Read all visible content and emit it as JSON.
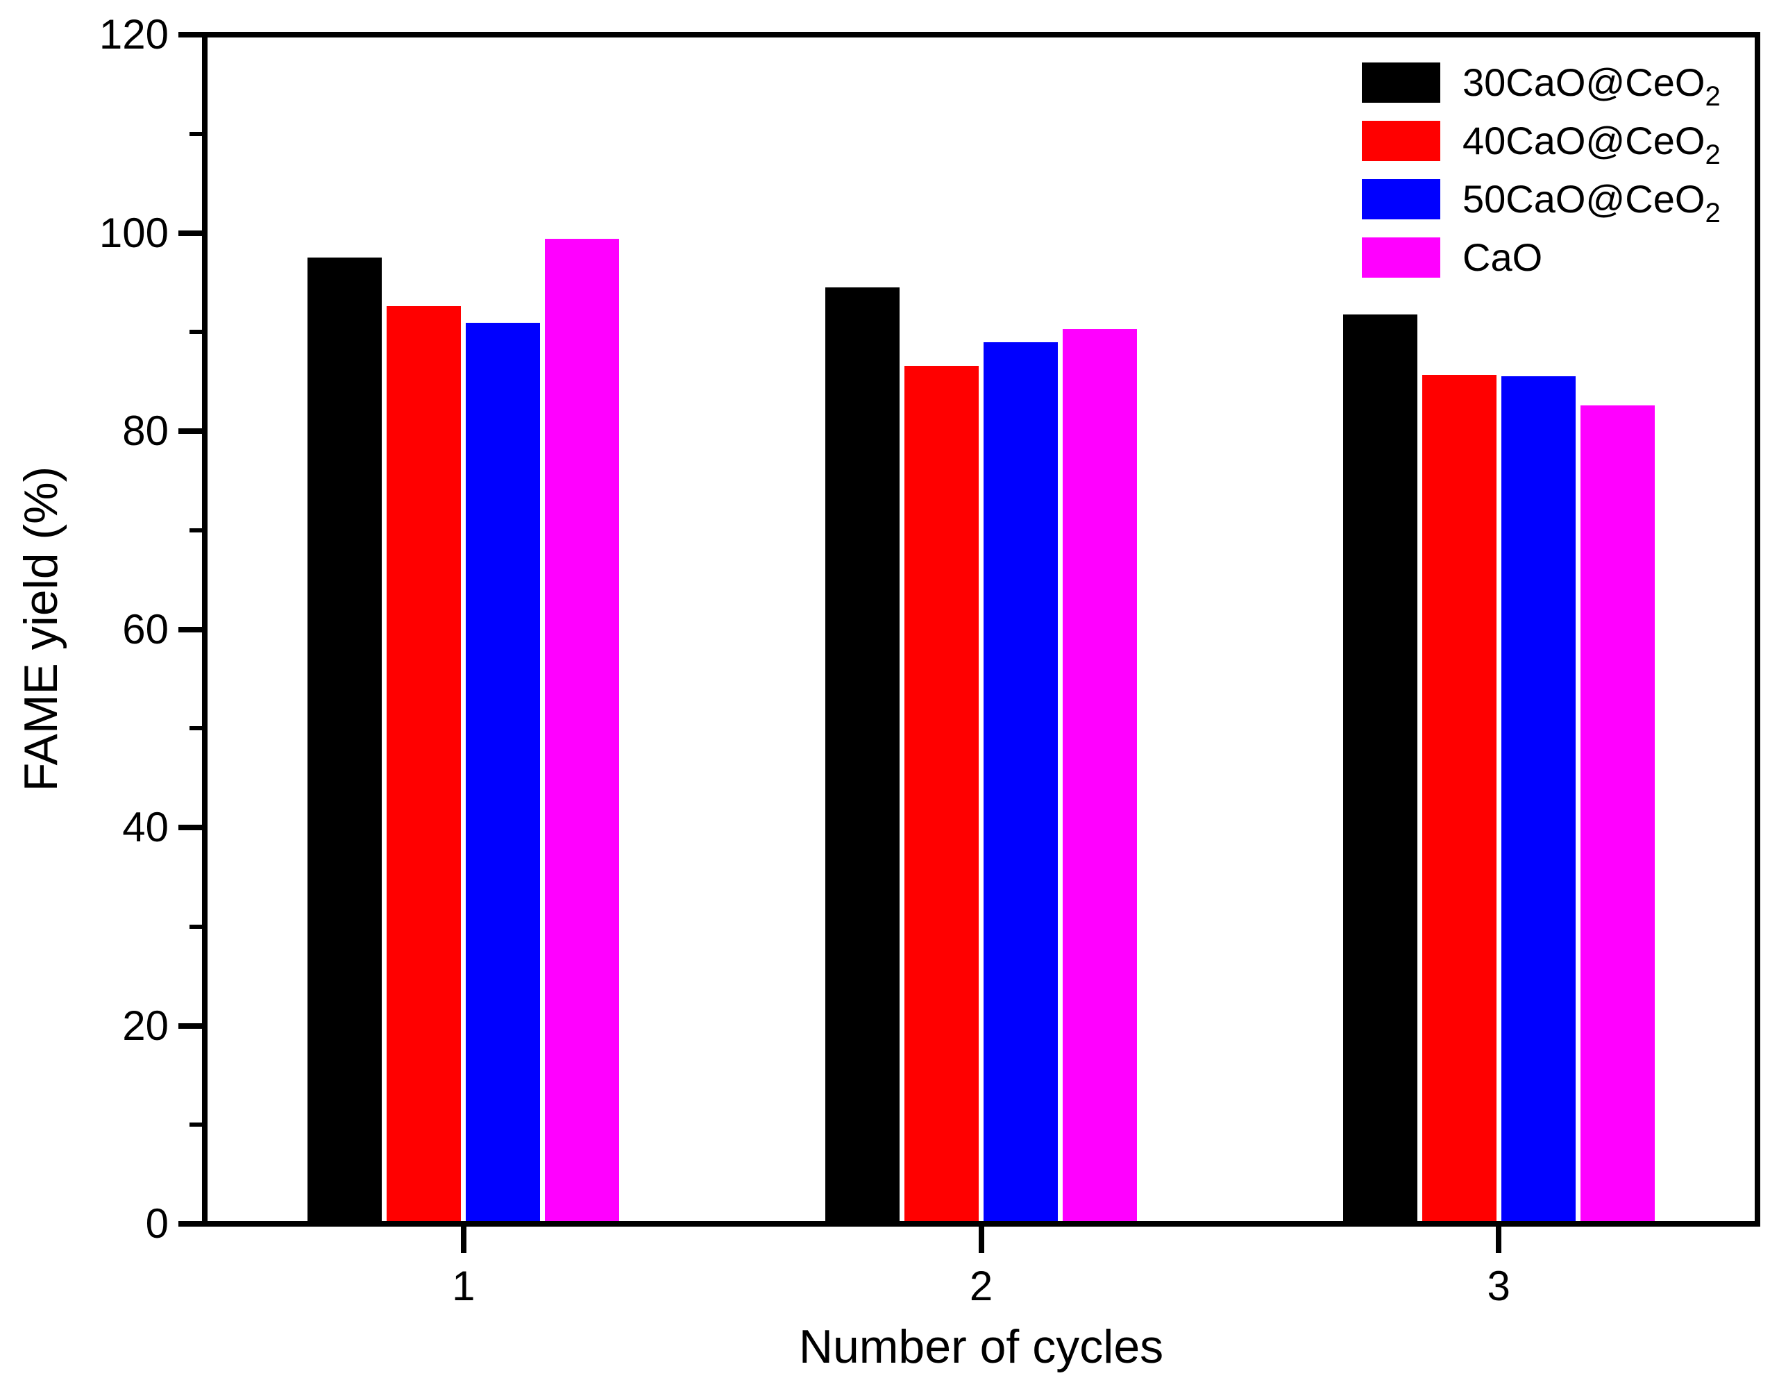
{
  "chart_data": {
    "type": "bar",
    "title": "",
    "xlabel": "Number of cycles",
    "ylabel": "FAME yield (%)",
    "categories": [
      "1",
      "2",
      "3"
    ],
    "series": [
      {
        "name": "30CaO@CeO",
        "name_sub": "2",
        "color": "#000000",
        "values": [
          97.5,
          94.5,
          91.8
        ]
      },
      {
        "name": "40CaO@CeO",
        "name_sub": "2",
        "color": "#ff0000",
        "values": [
          92.6,
          86.6,
          85.7
        ]
      },
      {
        "name": "50CaO@CeO",
        "name_sub": "2",
        "color": "#0000ff",
        "values": [
          90.9,
          89.0,
          85.5
        ]
      },
      {
        "name": "CaO",
        "name_sub": "",
        "color": "#ff00ff",
        "values": [
          99.4,
          90.3,
          82.6
        ]
      }
    ],
    "y_axis": {
      "min": 0,
      "max": 120,
      "major_step": 20,
      "minor_step": 10,
      "tick_labels": [
        "0",
        "20",
        "40",
        "60",
        "80",
        "100",
        "120"
      ]
    },
    "x_axis": {
      "tick_labels": [
        "1",
        "2",
        "3"
      ]
    },
    "legend_position": "top-right",
    "grid": false,
    "axis_color": "#000000",
    "background_color": "#ffffff",
    "bar_outline": "none"
  }
}
